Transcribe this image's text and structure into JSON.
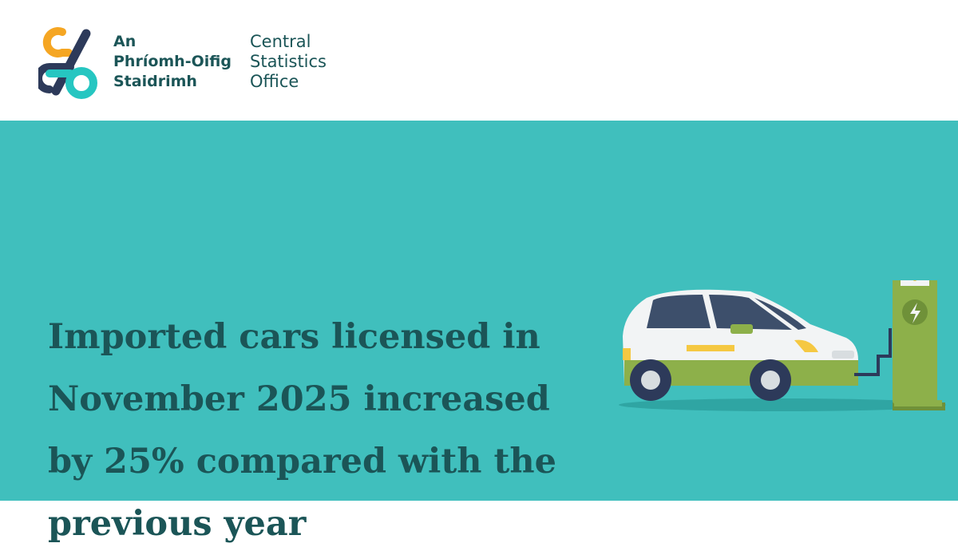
{
  "header": {
    "irish_name": [
      "An",
      "Phríomh-Oifig",
      "Staidrimh"
    ],
    "english_name": [
      "Central",
      "Statistics",
      "Office"
    ]
  },
  "headline": [
    "Imported cars licensed in",
    "November 2025 increased",
    "by 25% compared with the",
    "previous year"
  ]
}
